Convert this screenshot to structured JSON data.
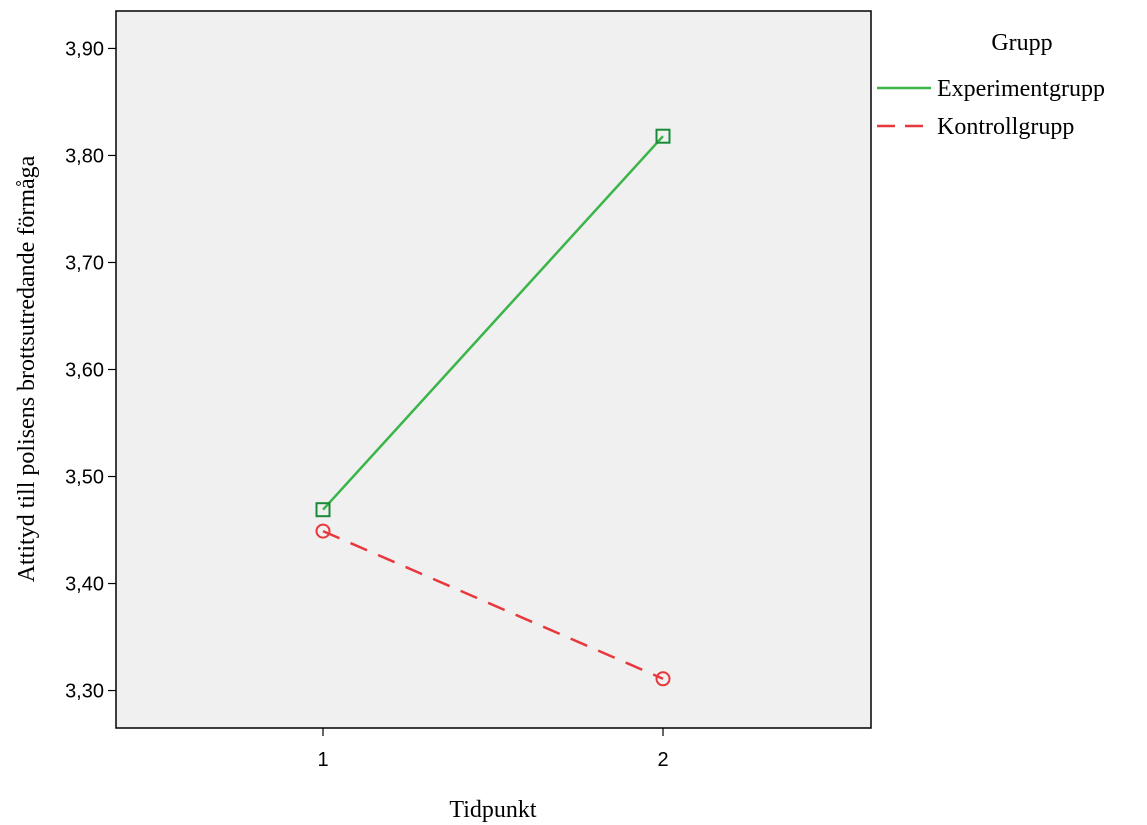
{
  "chart_data": {
    "type": "line",
    "xlabel": "Tidpunkt",
    "ylabel": "Attityd till polisens brottsutredande förmåga",
    "categories": [
      "1",
      "2"
    ],
    "yticks": [
      "3,30",
      "3,40",
      "3,50",
      "3,60",
      "3,70",
      "3,80",
      "3,90"
    ],
    "ylim": [
      3.265,
      3.935
    ],
    "legend_title": "Grupp",
    "legend_position": "right",
    "grid": false,
    "series": [
      {
        "name": "Experimentgrupp",
        "values": [
          3.469,
          3.818
        ],
        "color": "#3bb54a",
        "marker_color": "#1a8a3a",
        "marker": "square",
        "line_style": "solid"
      },
      {
        "name": "Kontrollgrupp",
        "values": [
          3.449,
          3.311
        ],
        "color": "#e8383d",
        "marker_color": "#e8383d",
        "marker": "circle",
        "line_style": "dashed"
      }
    ]
  }
}
